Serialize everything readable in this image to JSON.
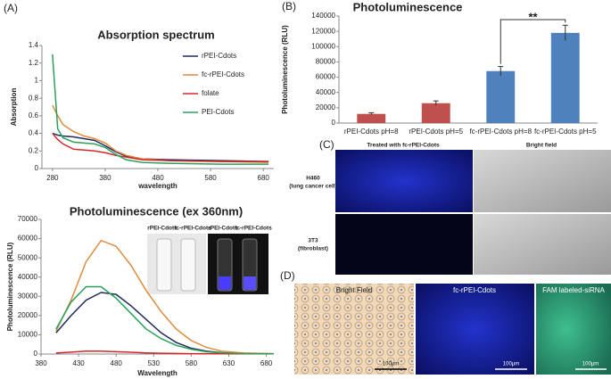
{
  "chart_data": [
    {
      "type": "line",
      "title": "Absorption spectrum",
      "x_label": "wavelength",
      "y_label": "Absorption",
      "x": [
        280,
        290,
        300,
        320,
        340,
        360,
        380,
        400,
        420,
        450,
        500,
        600,
        690
      ],
      "xlim": [
        260,
        700
      ],
      "xticks": [
        280,
        380,
        480,
        580,
        680
      ],
      "ylim": [
        0,
        1.4
      ],
      "yticks": [
        0,
        0.2,
        0.4,
        0.6,
        0.8,
        1,
        1.2,
        1.4
      ],
      "legend": "upper right",
      "series": [
        {
          "name": "rPEI-Cdots",
          "color": "#1f2a5c",
          "values": [
            0.4,
            0.38,
            0.37,
            0.36,
            0.34,
            0.32,
            0.26,
            0.19,
            0.14,
            0.11,
            0.1,
            0.09,
            0.08
          ]
        },
        {
          "name": "fc-rPEI-Cdots",
          "color": "#e08a3c",
          "values": [
            0.72,
            0.6,
            0.5,
            0.42,
            0.37,
            0.34,
            0.29,
            0.2,
            0.15,
            0.11,
            0.09,
            0.08,
            0.07
          ]
        },
        {
          "name": "folate",
          "color": "#d62728",
          "values": [
            0.4,
            0.33,
            0.28,
            0.22,
            0.21,
            0.2,
            0.18,
            0.15,
            0.13,
            0.1,
            0.09,
            0.08,
            0.08
          ]
        },
        {
          "name": "PEI-Cdots",
          "color": "#2ca05a",
          "values": [
            1.3,
            0.45,
            0.35,
            0.3,
            0.29,
            0.28,
            0.24,
            0.16,
            0.1,
            0.07,
            0.06,
            0.05,
            0.05
          ]
        }
      ]
    },
    {
      "type": "line",
      "title": "Photoluminescence (ex 360nm)",
      "x_label": "Wavelength",
      "y_label": "Photoluminescence (RLU)",
      "annotations": [
        "rPEI-Cdots",
        "fc-rPEI-Cdots",
        "rPEI-Cdots",
        "fc-rPEI-Cdots"
      ],
      "x": [
        400,
        420,
        440,
        460,
        480,
        500,
        520,
        540,
        560,
        580,
        600,
        620,
        650,
        690
      ],
      "xlim": [
        380,
        690
      ],
      "xticks": [
        380,
        430,
        480,
        530,
        580,
        630,
        680
      ],
      "ylim": [
        0,
        70000
      ],
      "yticks": [
        0,
        10000,
        20000,
        30000,
        40000,
        50000,
        60000,
        70000
      ],
      "series": [
        {
          "name": "rPEI-Cdots",
          "color": "#1f2a5c",
          "values": [
            11000,
            20000,
            28000,
            32000,
            31000,
            25000,
            18000,
            11000,
            6000,
            3000,
            1500,
            700,
            300,
            100
          ]
        },
        {
          "name": "fc-rPEI-Cdots",
          "color": "#e08a3c",
          "values": [
            12000,
            28000,
            48000,
            59000,
            56000,
            46000,
            33000,
            22000,
            13000,
            7000,
            3500,
            1500,
            500,
            200
          ]
        },
        {
          "name": "folate",
          "color": "#d62728",
          "values": [
            500,
            1000,
            1500,
            1500,
            1200,
            900,
            600,
            400,
            300,
            200,
            150,
            100,
            100,
            100
          ]
        },
        {
          "name": "PEI-Cdots",
          "color": "#2ca05a",
          "values": [
            13000,
            27000,
            35000,
            35000,
            29000,
            21000,
            13000,
            8000,
            4500,
            2500,
            1200,
            600,
            300,
            100
          ]
        }
      ]
    },
    {
      "type": "bar",
      "title": "Photoluminescence",
      "y_label": "Photoluminescence (RLU)",
      "categories": [
        "rPEI-Cdots pH=8",
        "rPEI-Cdots pH=5",
        "fc-rPEI-Cdots pH=8",
        "fc-rPEI-Cdots pH=5"
      ],
      "values": [
        12000,
        26000,
        68000,
        118000
      ],
      "errors": [
        1500,
        3000,
        6000,
        10000
      ],
      "colors": [
        "#c0504d",
        "#c0504d",
        "#4f81bd",
        "#4f81bd"
      ],
      "ylim": [
        0,
        140000
      ],
      "yticks": [
        0,
        20000,
        40000,
        60000,
        80000,
        100000,
        120000,
        140000
      ],
      "annotation": "**"
    }
  ],
  "panels": [
    "(A)",
    "(B)",
    "(C)",
    "(D)"
  ],
  "panel_c": {
    "headers": [
      "Treated with fc-rPEI-Cdots",
      "Bright field"
    ],
    "rows": [
      {
        "name": "H460",
        "desc": "(lung cancer cell)"
      },
      {
        "name": "3T3",
        "desc": "(fibroblast)"
      }
    ]
  },
  "panel_d": {
    "headers": [
      "Bright Field",
      "fc-rPEI-Cdots",
      "FAM labeled-siRNA"
    ],
    "scale_bars": [
      "100μm",
      "100μm",
      "100μm"
    ]
  }
}
